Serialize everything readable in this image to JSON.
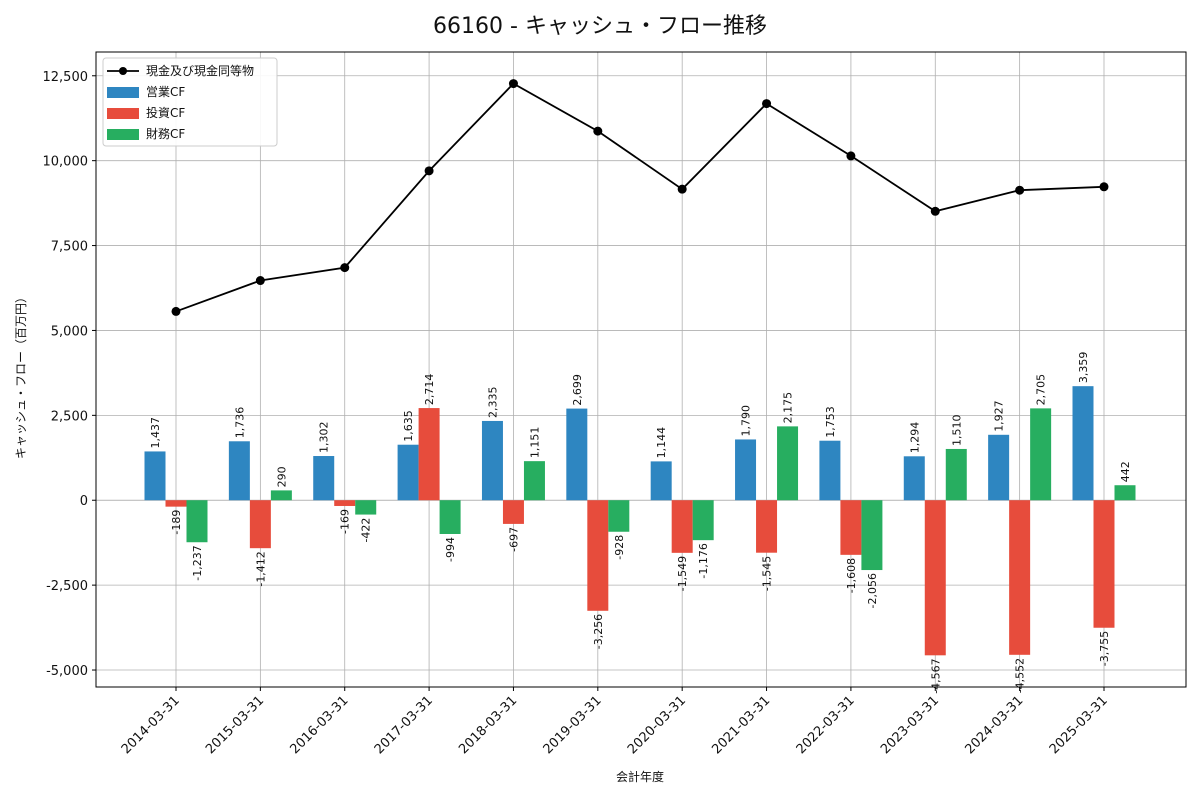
{
  "chart_data": {
    "type": "bar",
    "title": "66160 - キャッシュ・フロー推移",
    "xlabel": "会計年度",
    "ylabel": "キャッシュ・フロー（百万円）",
    "ylim": [
      -5500,
      13200
    ],
    "yticks": [
      -5000,
      -2500,
      0,
      2500,
      5000,
      7500,
      10000,
      12500
    ],
    "ytick_labels": [
      "-5,000",
      "-2,500",
      "0",
      "2,500",
      "5,000",
      "7,500",
      "10,000",
      "12,500"
    ],
    "grid": true,
    "legend_position": "top-left",
    "categories": [
      "2014-03-31",
      "2015-03-31",
      "2016-03-31",
      "2017-03-31",
      "2018-03-31",
      "2019-03-31",
      "2020-03-31",
      "2021-03-31",
      "2022-03-31",
      "2023-03-31",
      "2024-03-31",
      "2025-03-31"
    ],
    "series": [
      {
        "name": "営業CF",
        "kind": "bar",
        "color": "#2E86C1",
        "values": [
          1437,
          1736,
          1302,
          1635,
          2335,
          2699,
          1144,
          1790,
          1753,
          1294,
          1927,
          3359
        ],
        "labels": [
          "1,437",
          "1,736",
          "1,302",
          "1,635",
          "2,335",
          "2,699",
          "1,144",
          "1,790",
          "1,753",
          "1,294",
          "1,927",
          "3,359"
        ]
      },
      {
        "name": "投資CF",
        "kind": "bar",
        "color": "#E74C3C",
        "values": [
          -189,
          -1412,
          -169,
          2714,
          -697,
          -3256,
          -1549,
          -1545,
          -1608,
          -4567,
          -4552,
          -3755
        ],
        "labels": [
          "-189",
          "-1,412",
          "-169",
          "2,714",
          "-697",
          "-3,256",
          "-1,549",
          "-1,545",
          "-1,608",
          "-4,567",
          "-4,552",
          "-3,755"
        ]
      },
      {
        "name": "財務CF",
        "kind": "bar",
        "color": "#27AE60",
        "values": [
          -1237,
          290,
          -422,
          -994,
          1151,
          -928,
          -1176,
          2175,
          -2056,
          1510,
          2705,
          442
        ],
        "labels": [
          "-1,237",
          "290",
          "-422",
          "-994",
          "1,151",
          "-928",
          "-1,176",
          "2,175",
          "-2,056",
          "1,510",
          "2,705",
          "442"
        ]
      },
      {
        "name": "現金及び現金同等物",
        "kind": "line",
        "color": "#000000",
        "values": [
          5560,
          6470,
          6850,
          9700,
          12270,
          10870,
          9160,
          11680,
          10140,
          8510,
          9130,
          9230
        ]
      }
    ]
  }
}
